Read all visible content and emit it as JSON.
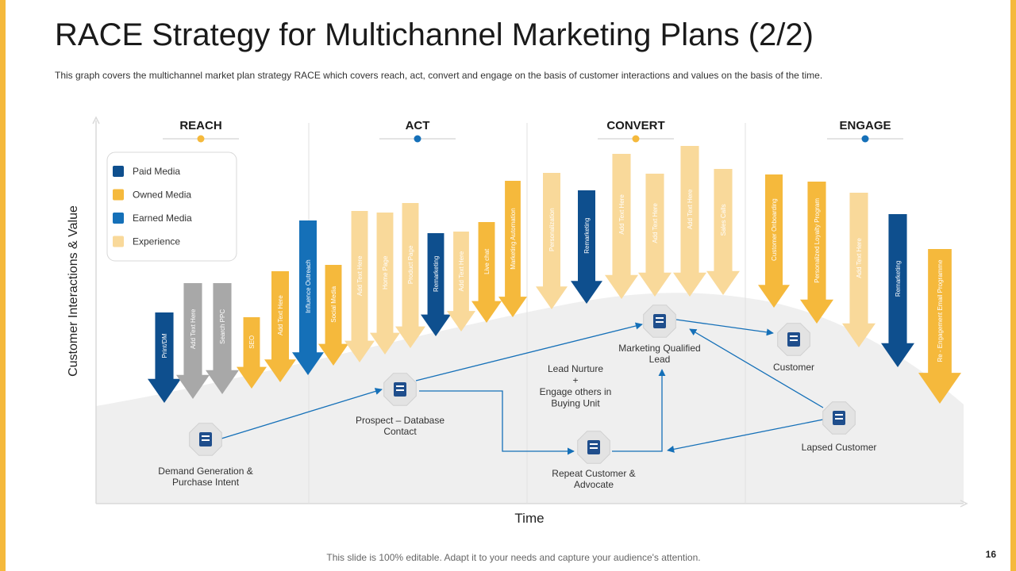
{
  "title": "RACE Strategy for Multichannel Marketing Plans (2/2)",
  "subtitle": "This graph covers the multichannel market plan strategy RACE which covers reach, act, convert and engage on the basis of customer interactions and values on the basis of the time.",
  "footer": "This slide is 100% editable. Adapt it to your needs and capture your audience's attention.",
  "page_number": "16",
  "axes": {
    "y_label": "Customer Interactions & Value",
    "x_label": "Time"
  },
  "stages": [
    {
      "label": "REACH",
      "dot_color": "#F5B93C"
    },
    {
      "label": "ACT",
      "dot_color": "#1570B8"
    },
    {
      "label": "CONVERT",
      "dot_color": "#F5B93C"
    },
    {
      "label": "ENGAGE",
      "dot_color": "#1570B8"
    }
  ],
  "legend": [
    {
      "label": "Paid Media",
      "color": "#0E4F8E"
    },
    {
      "label": "Owned Media",
      "color": "#F5B93C"
    },
    {
      "label": "Earned Media",
      "color": "#1570B8"
    },
    {
      "label": "Experience",
      "color": "#F9D99A"
    }
  ],
  "colors": {
    "Paid": "#0E4F8E",
    "Owned": "#F5B93C",
    "Earned": "#1570B8",
    "Experience": "#F9D99A",
    "Gray": "#A8A8A8",
    "connector": "#1570B8"
  },
  "arrows": [
    {
      "label": "Print/DM",
      "kind": "Paid"
    },
    {
      "label": "Add Text Here",
      "kind": "Gray"
    },
    {
      "label": "Search PPC",
      "kind": "Gray"
    },
    {
      "label": "SEO",
      "kind": "Owned"
    },
    {
      "label": "Add Text Here",
      "kind": "Owned"
    },
    {
      "label": "Influence Outreach",
      "kind": "Earned"
    },
    {
      "label": "Social Media",
      "kind": "Owned"
    },
    {
      "label": "Add Text Here",
      "kind": "Experience"
    },
    {
      "label": "Home Page",
      "kind": "Experience"
    },
    {
      "label": "Product Page",
      "kind": "Experience"
    },
    {
      "label": "Remarketing",
      "kind": "Paid"
    },
    {
      "label": "Add Text Here",
      "kind": "Experience"
    },
    {
      "label": "Live chat",
      "kind": "Owned"
    },
    {
      "label": "Marketing Automation",
      "kind": "Owned"
    },
    {
      "label": "Personalization",
      "kind": "Experience"
    },
    {
      "label": "Remarketing",
      "kind": "Paid"
    },
    {
      "label": "Add Text Here",
      "kind": "Experience"
    },
    {
      "label": "Add Text Here",
      "kind": "Experience"
    },
    {
      "label": "Add Text Here",
      "kind": "Experience"
    },
    {
      "label": "Sales Calls",
      "kind": "Experience"
    },
    {
      "label": "Customer Onboarding",
      "kind": "Owned"
    },
    {
      "label": "Personalized Loyalty Program",
      "kind": "Owned"
    },
    {
      "label": "Add Text Here",
      "kind": "Experience"
    },
    {
      "label": "Remarketing",
      "kind": "Paid"
    },
    {
      "label": "Re - Engagement Email Programme",
      "kind": "Owned"
    }
  ],
  "nodes": [
    {
      "id": "demand",
      "label": [
        "Demand Generation &",
        "Purchase Intent"
      ],
      "icon": "growth-chart-icon"
    },
    {
      "id": "prospect",
      "label": [
        "Prospect – Database",
        "Contact"
      ],
      "icon": "database-icon"
    },
    {
      "id": "mql",
      "label": [
        "Marketing Qualified",
        "Lead"
      ],
      "icon": "clipboard-icon"
    },
    {
      "id": "repeat",
      "label": [
        "Repeat Customer &",
        "Advocate"
      ],
      "icon": "refresh-user-icon"
    },
    {
      "id": "customer",
      "label": [
        "Customer"
      ],
      "icon": "customer-icon"
    },
    {
      "id": "lapsed",
      "label": [
        "Lapsed Customer"
      ],
      "icon": "lapsed-user-icon"
    }
  ],
  "nurture_text": [
    "Lead Nurture",
    "+",
    "Engage others in",
    "Buying Unit"
  ]
}
